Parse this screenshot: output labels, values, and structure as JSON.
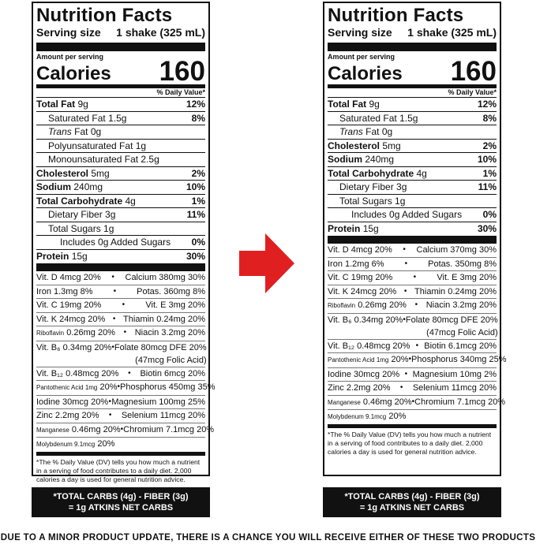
{
  "left_label": {
    "title": "Nutrition Facts",
    "serving_size_label": "Serving size",
    "serving_size_value": "1 shake (325 mL)",
    "amount_per_serving": "Amount per serving",
    "calories_label": "Calories",
    "calories_value": "160",
    "dv_header": "% Daily Value*",
    "nutrients": [
      {
        "name": "Total Fat",
        "amount": "9g",
        "pct": "12%"
      },
      {
        "name": "Saturated Fat",
        "amount": "1.5g",
        "pct": "8%"
      },
      {
        "name": "Trans",
        "amount": "Fat 0g",
        "pct": ""
      },
      {
        "name": "Polyunsaturated Fat",
        "amount": "1g",
        "pct": ""
      },
      {
        "name": "Monounsaturated Fat",
        "amount": "2.5g",
        "pct": ""
      },
      {
        "name": "Cholesterol",
        "amount": "5mg",
        "pct": "2%"
      },
      {
        "name": "Sodium",
        "amount": "240mg",
        "pct": "10%"
      },
      {
        "name": "Total Carbohydrate",
        "amount": "4g",
        "pct": "1%"
      },
      {
        "name": "Dietary Fiber",
        "amount": "3g",
        "pct": "11%"
      },
      {
        "name": "Total Sugars",
        "amount": "1g",
        "pct": ""
      },
      {
        "name": "Includes 0g Added Sugars",
        "amount": "",
        "pct": "0%"
      },
      {
        "name": "Protein",
        "amount": "15g",
        "pct": "30%"
      }
    ],
    "vitamins": [
      {
        "left": "Vit. D 4mcg 20%",
        "right": "Calcium 380mg 30%"
      },
      {
        "left": "Iron 1.3mg 8%",
        "right": "Potas. 360mg 8%"
      },
      {
        "left": "Vit. C 19mg 20%",
        "right": "Vit. E 3mg 20%"
      },
      {
        "left": "Vit. K 24mcg 20%",
        "right": "Thiamin 0.24mg 20%"
      },
      {
        "left_small": "Riboflavin",
        "left": "0.26mg 20%",
        "right": "Niacin 3.2mg 20%"
      },
      {
        "left": "Vit. B₆ 0.34mg 20%",
        "right": "Folate 80mcg DFE 20%",
        "right2": "(47mcg Folic Acid)"
      },
      {
        "left": "Vit. B₁₂ 0.48mcg 20%",
        "right": "Biotin 6mcg 20%"
      },
      {
        "left_small": "Pantothenic Acid 1mg",
        "left": "20%",
        "right": "Phosphorus 450mg 35%"
      },
      {
        "left": "Iodine 30mcg 20%",
        "right": "Magnesium 100mg 25%"
      },
      {
        "left": "Zinc 2.2mg 20%",
        "right": "Selenium 11mcg 20%"
      },
      {
        "left_small": "Manganese",
        "left": "0.46mg 20%",
        "right": "Chromium 7.1mcg 20%"
      },
      {
        "left_small": "Molybdenum 9.1mcg",
        "left": "20%",
        "right": ""
      }
    ],
    "footnote": "*The % Daily Value (DV) tells you how much a nutrient in a serving of food contributes to a daily diet. 2,000 calories a day is used for general nutrition advice.",
    "net_carbs_line1": "*TOTAL CARBS (4g) - FIBER (3g)",
    "net_carbs_line2": "= 1g ATKINS NET CARBS"
  },
  "right_label": {
    "title": "Nutrition Facts",
    "serving_size_label": "Serving size",
    "serving_size_value": "1 shake (325 mL)",
    "amount_per_serving": "Amount per serving",
    "calories_label": "Calories",
    "calories_value": "160",
    "dv_header": "% Daily Value*",
    "nutrients": [
      {
        "name": "Total Fat",
        "amount": "9g",
        "pct": "12%"
      },
      {
        "name": "Saturated Fat",
        "amount": "1.5g",
        "pct": "8%"
      },
      {
        "name": "Trans",
        "amount": "Fat 0g",
        "pct": ""
      },
      {
        "name": "Cholesterol",
        "amount": "5mg",
        "pct": "2%"
      },
      {
        "name": "Sodium",
        "amount": "240mg",
        "pct": "10%"
      },
      {
        "name": "Total Carbohydrate",
        "amount": "4g",
        "pct": "1%"
      },
      {
        "name": "Dietary Fiber",
        "amount": "3g",
        "pct": "11%"
      },
      {
        "name": "Total Sugars",
        "amount": "1g",
        "pct": ""
      },
      {
        "name": "Includes 0g Added Sugars",
        "amount": "",
        "pct": "0%"
      },
      {
        "name": "Protein",
        "amount": "15g",
        "pct": "30%"
      }
    ],
    "vitamins": [
      {
        "left": "Vit. D 4mcg 20%",
        "right": "Calcium 370mg 30%"
      },
      {
        "left": "Iron 1.2mg 6%",
        "right": "Potas. 350mg 8%"
      },
      {
        "left": "Vit. C 19mg 20%",
        "right": "Vit. E 3mg 20%"
      },
      {
        "left": "Vit. K 24mcg 20%",
        "right": "Thiamin 0.24mg 20%"
      },
      {
        "left_small": "Riboflavin",
        "left": "0.26mg 20%",
        "right": "Niacin 3.2mg 20%"
      },
      {
        "left": "Vit. B₆ 0.34mg 20%",
        "right": "Folate 80mcg DFE 20%",
        "right2": "(47mcg Folic Acid)"
      },
      {
        "left": "Vit. B₁₂ 0.48mcg 20%",
        "right": "Biotin 6.1mcg 20%"
      },
      {
        "left_small": "Pantothenic Acid 1mg",
        "left": "20%",
        "right": "Phosphorus 340mg 25%"
      },
      {
        "left": "Iodine 30mcg 20%",
        "right": "Magnesium 10mg 2%"
      },
      {
        "left": "Zinc 2.2mg 20%",
        "right": "Selenium 11mcg 20%"
      },
      {
        "left_small": "Manganese",
        "left": "0.46mg 20%",
        "right": "Chromium 7.1mcg 20%"
      },
      {
        "left_small": "Molybdenum 9.1mcg",
        "left": "20%",
        "right": ""
      }
    ],
    "footnote": "*The % Daily Value (DV) tells you how much a nutrient in a serving of food contributes to a daily diet. 2,000 calories a day is used for general nutrition advice.",
    "net_carbs_line1": "*TOTAL CARBS (4g) - FIBER (3g)",
    "net_carbs_line2": "= 1g ATKINS NET CARBS"
  },
  "arrow": {
    "icon": "right-arrow-icon",
    "color": "#e02020"
  },
  "footer_text": "DUE TO A MINOR PRODUCT UPDATE, THERE IS A CHANCE YOU WILL RECEIVE EITHER OF THESE TWO PRODUCTS"
}
